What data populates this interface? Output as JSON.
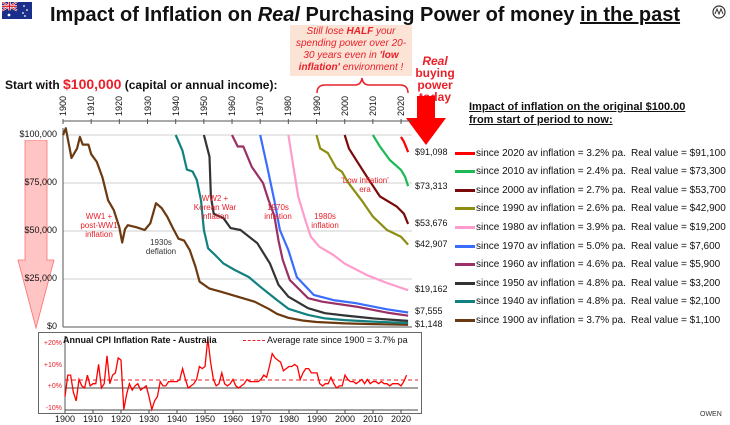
{
  "header": {
    "title_part1": "Impact of Inflation on ",
    "title_italic": "Real",
    "title_part2": " Purchasing Power of money ",
    "title_underlined": "in the past",
    "flag_icon": "australia-flag-icon",
    "logo_icon": "owen-logo-icon"
  },
  "callout": {
    "l1": "Still lose ",
    "l1b": "HALF",
    "l1c": " your",
    "l2": "spending power over 20-",
    "l3": "30 years even in ",
    "l3b": "'low",
    "l4b": "inflation'",
    "l4": " environment !"
  },
  "start": {
    "prefix": "Start with ",
    "amount": "$100,000",
    "suffix": " (capital or annual income):"
  },
  "real_today": {
    "l1": "Real",
    "l2": "buying",
    "l3": "power",
    "l4": "today"
  },
  "legend_heading": {
    "l1": "Impact of inflation on the original $100.00",
    "l2": "from start of period to now:"
  },
  "legend": [
    {
      "since": "since 2020 av inflation =  3.2% pa.",
      "real": "Real value =  $91,100",
      "color": "#ff0000"
    },
    {
      "since": "since 2010 av inflation =  2.4% pa.",
      "real": "Real value =  $73,300",
      "color": "#1db954"
    },
    {
      "since": "since 2000 av inflation =  2.7% pa.",
      "real": "Real value =  $53,700",
      "color": "#7a0a0a"
    },
    {
      "since": "since 1990 av inflation =  2.6% pa.",
      "real": "Real value =  $42,900",
      "color": "#8d8d12"
    },
    {
      "since": "since 1980 av inflation =  3.9% pa.",
      "real": "Real value =  $19,200",
      "color": "#ff9ccd"
    },
    {
      "since": "since 1970 av inflation =  5.0% pa.",
      "real": "Real value =  $7,600",
      "color": "#3a6dff"
    },
    {
      "since": "since 1960 av inflation =  4.6% pa.",
      "real": "Real value =  $5,900",
      "color": "#9a3066"
    },
    {
      "since": "since 1950 av inflation =  4.8% pa.",
      "real": "Real value =  $3,200",
      "color": "#333333"
    },
    {
      "since": "since 1940 av inflation =  4.8% pa.",
      "real": "Real value =  $2,100",
      "color": "#138080"
    },
    {
      "since": "since 1900 av inflation =  3.7% pa.",
      "real": "Real value =  $1,100",
      "color": "#6b3a10"
    }
  ],
  "footer": {
    "brand": "OWEN"
  },
  "chart_data": [
    {
      "type": "line",
      "title": "",
      "xlim": [
        1900,
        2023
      ],
      "ylim": [
        0,
        100000
      ],
      "grid": "horizontal",
      "y_ticks": [
        "$0",
        "$25,000",
        "$50,000",
        "$75,000",
        "$100,000"
      ],
      "y_tick_values": [
        0,
        25000,
        50000,
        75000,
        100000
      ],
      "x_ticks": [
        "1900",
        "1910",
        "1920",
        "1930",
        "1940",
        "1950",
        "1960",
        "1970",
        "1980",
        "1990",
        "2000",
        "2010",
        "2020"
      ],
      "end_labels": [
        {
          "text": "$91,098",
          "value": 91098
        },
        {
          "text": "$73,313",
          "value": 73313
        },
        {
          "text": "$53,676",
          "value": 53676
        },
        {
          "text": "$42,907",
          "value": 42907
        },
        {
          "text": "$19,162",
          "value": 19162
        },
        {
          "text": "$7,555",
          "value": 7555
        },
        {
          "text": "$1,148",
          "value": 1148
        }
      ],
      "annotations": [
        {
          "text": "WW1 + post-WW1 inflation",
          "l1": "WW1 +",
          "l2": "post-WW1",
          "l3": "inflation",
          "color": "#e8202a"
        },
        {
          "text": "1930s deflation",
          "l1": "1930s",
          "l2": "deflation",
          "color": "#333333"
        },
        {
          "text": "WW2 + Korean War inflation",
          "l1": "WW2 +",
          "l2": "Korean War",
          "l3": "inflation",
          "color": "#e8202a"
        },
        {
          "text": "1970s inflation",
          "l1": "1970s",
          "l2": "inflation",
          "color": "#e8202a"
        },
        {
          "text": "1980s inflation",
          "l1": "1980s",
          "l2": "inflation",
          "color": "#e8202a"
        },
        {
          "text": "'Low inflation' era",
          "l1": "'Low inflation'",
          "l2": "era",
          "color": "#e8202a"
        }
      ],
      "series": [
        {
          "name": "since 1900",
          "color": "#6b3a10",
          "points": [
            [
              1900,
              100000
            ],
            [
              1901,
              103500
            ],
            [
              1903,
              88000
            ],
            [
              1905,
              93000
            ],
            [
              1906,
              99000
            ],
            [
              1907,
              95000
            ],
            [
              1909,
              95000
            ],
            [
              1910,
              90000
            ],
            [
              1912,
              86000
            ],
            [
              1914,
              78000
            ],
            [
              1916,
              66000
            ],
            [
              1918,
              61000
            ],
            [
              1920,
              52000
            ],
            [
              1921,
              44000
            ],
            [
              1922,
              51000
            ],
            [
              1923,
              53000
            ],
            [
              1926,
              52000
            ],
            [
              1929,
              50500
            ],
            [
              1931,
              54000
            ],
            [
              1933,
              64500
            ],
            [
              1935,
              62000
            ],
            [
              1937,
              57500
            ],
            [
              1939,
              51500
            ],
            [
              1941,
              46000
            ],
            [
              1943,
              45000
            ],
            [
              1945,
              40000
            ],
            [
              1947,
              31500
            ],
            [
              1948.5,
              23600
            ],
            [
              1952,
              20000
            ],
            [
              1956,
              18400
            ],
            [
              1962,
              15800
            ],
            [
              1968,
              13200
            ],
            [
              1973,
              9500
            ],
            [
              1976,
              6800
            ],
            [
              1980,
              4800
            ],
            [
              1985,
              3400
            ],
            [
              1990,
              2600
            ],
            [
              2000,
              1900
            ],
            [
              2010,
              1500
            ],
            [
              2022.5,
              1148
            ]
          ]
        },
        {
          "name": "since 1940",
          "color": "#138080",
          "points": [
            [
              1940,
              100000
            ],
            [
              1942.4,
              92000
            ],
            [
              1944,
              82000
            ],
            [
              1946,
              81000
            ],
            [
              1947.5,
              76600
            ],
            [
              1949,
              66000
            ],
            [
              1950,
              50500
            ],
            [
              1951.5,
              41000
            ],
            [
              1954,
              37500
            ],
            [
              1957,
              33000
            ],
            [
              1961,
              29700
            ],
            [
              1966,
              26000
            ],
            [
              1970,
              21000
            ],
            [
              1973,
              17500
            ],
            [
              1976,
              14000
            ],
            [
              1980,
              9500
            ],
            [
              1987,
              6300
            ],
            [
              1993,
              4500
            ],
            [
              2000,
              3600
            ],
            [
              2010,
              2800
            ],
            [
              2022.5,
              2100
            ]
          ]
        },
        {
          "name": "since 1950",
          "color": "#333333",
          "points": [
            [
              1950,
              100000
            ],
            [
              1952,
              88700
            ],
            [
              1952.5,
              67900
            ],
            [
              1953.5,
              59000
            ],
            [
              1957,
              56600
            ],
            [
              1959.5,
              51500
            ],
            [
              1963,
              50500
            ],
            [
              1969,
              43600
            ],
            [
              1973.5,
              33000
            ],
            [
              1976.5,
              22000
            ],
            [
              1980,
              15800
            ],
            [
              1987,
              9800
            ],
            [
              1993,
              7200
            ],
            [
              2000,
              6000
            ],
            [
              2010,
              4500
            ],
            [
              2022.5,
              3200
            ]
          ]
        },
        {
          "name": "since 1960",
          "color": "#9a3066",
          "points": [
            [
              1960,
              100000
            ],
            [
              1962,
              94000
            ],
            [
              1964,
              94000
            ],
            [
              1967,
              83500
            ],
            [
              1971,
              75000
            ],
            [
              1973,
              66000
            ],
            [
              1975,
              58000
            ],
            [
              1976.5,
              45000
            ],
            [
              1978,
              35000
            ],
            [
              1980.5,
              24500
            ],
            [
              1987,
              15000
            ],
            [
              1992,
              13200
            ],
            [
              2004,
              10600
            ],
            [
              2015,
              7500
            ],
            [
              2022.5,
              5900
            ]
          ]
        },
        {
          "name": "since 1970",
          "color": "#3a6dff",
          "points": [
            [
              1970,
              100000
            ],
            [
              1972.5,
              83500
            ],
            [
              1975,
              66000
            ],
            [
              1977,
              50500
            ],
            [
              1980,
              40000
            ],
            [
              1983,
              26000
            ],
            [
              1989,
              16700
            ],
            [
              1996,
              14000
            ],
            [
              2004,
              12400
            ],
            [
              2015,
              9200
            ],
            [
              2022.5,
              7555
            ]
          ]
        },
        {
          "name": "since 1980",
          "color": "#ff9ccd",
          "points": [
            [
              1980,
              100000
            ],
            [
              1981.8,
              83500
            ],
            [
              1983.5,
              68000
            ],
            [
              1986,
              55700
            ],
            [
              1988,
              47000
            ],
            [
              1991,
              41800
            ],
            [
              1996,
              37500
            ],
            [
              2000,
              33000
            ],
            [
              2008,
              27000
            ],
            [
              2015,
              22900
            ],
            [
              2022.5,
              19162
            ]
          ]
        },
        {
          "name": "since 1990",
          "color": "#8d8d12",
          "points": [
            [
              1990,
              100000
            ],
            [
              1991.3,
              93000
            ],
            [
              1994,
              90600
            ],
            [
              1997,
              82800
            ],
            [
              1999,
              80900
            ],
            [
              2001,
              75700
            ],
            [
              2006,
              66000
            ],
            [
              2010,
              57500
            ],
            [
              2015,
              50500
            ],
            [
              2020,
              47000
            ],
            [
              2022.5,
              42907
            ]
          ]
        },
        {
          "name": "since 2000",
          "color": "#7a0a0a",
          "points": [
            [
              2000,
              100000
            ],
            [
              2001.5,
              93000
            ],
            [
              2004.5,
              86000
            ],
            [
              2008,
              78000
            ],
            [
              2012.5,
              68000
            ],
            [
              2018.5,
              62700
            ],
            [
              2021,
              59000
            ],
            [
              2022.5,
              53676
            ]
          ]
        },
        {
          "name": "since 2010",
          "color": "#1db954",
          "points": [
            [
              2010,
              100000
            ],
            [
              2012.5,
              94000
            ],
            [
              2016,
              87000
            ],
            [
              2020,
              81800
            ],
            [
              2021.5,
              78000
            ],
            [
              2022.5,
              73313
            ]
          ]
        },
        {
          "name": "since 2020",
          "color": "#ff0000",
          "points": [
            [
              2020,
              99000
            ],
            [
              2021,
              96500
            ],
            [
              2022,
              93000
            ],
            [
              2022.5,
              91098
            ]
          ]
        }
      ]
    },
    {
      "type": "line",
      "title": "Annual CPI Inflation Rate - Australia",
      "xlim": [
        1900,
        2026
      ],
      "ylim": [
        -10,
        25
      ],
      "y_ticks": [
        "+20%",
        "+10%",
        "+0%",
        "-10%"
      ],
      "y_tick_values": [
        20,
        10,
        0,
        -10
      ],
      "x_ticks": [
        "1900",
        "1910",
        "1920",
        "1930",
        "1940",
        "1950",
        "1960",
        "1970",
        "1980",
        "1990",
        "2000",
        "2010",
        "2020"
      ],
      "average": {
        "label": "Average rate since 1900  =  3.7% pa",
        "value": 3.7,
        "color": "#e8202a"
      },
      "color": "#ff0000",
      "start_year": 1900,
      "rates": [
        -4,
        6,
        6,
        -2,
        -6,
        4,
        1,
        0,
        6,
        1,
        2,
        2,
        11,
        0,
        2,
        15,
        2,
        6,
        7,
        14,
        13,
        -10,
        -3,
        2,
        -1,
        1,
        2,
        -1,
        0,
        1,
        -4,
        -10,
        -6,
        -4,
        3,
        1,
        1,
        3,
        3,
        3,
        3,
        4,
        9,
        4,
        0,
        1,
        2,
        4,
        10,
        9,
        10,
        23,
        12,
        4,
        1,
        2,
        7,
        2,
        1,
        2,
        4,
        1,
        0,
        1,
        2,
        4,
        3,
        3,
        3,
        3,
        4,
        6,
        5,
        10,
        16,
        14,
        13,
        12,
        8,
        9,
        10,
        10,
        11,
        10,
        4,
        7,
        9,
        9,
        7,
        7,
        7,
        2,
        1,
        2,
        2,
        5,
        2,
        0,
        1,
        1,
        6,
        4,
        3,
        3,
        2,
        3,
        4,
        2,
        4,
        2,
        3,
        3,
        2,
        3,
        2,
        2,
        1,
        2,
        2,
        2,
        1,
        3,
        6
      ]
    }
  ]
}
